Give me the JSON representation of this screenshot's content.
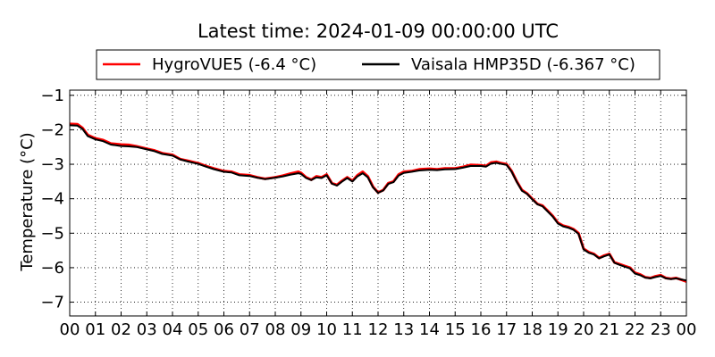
{
  "chart_data": {
    "type": "line",
    "title": "Latest time: 2024-01-09 00:00:00 UTC",
    "xlabel": "",
    "ylabel": "Temperature (°C)",
    "xlim": [
      0,
      24
    ],
    "ylim": [
      -7.4,
      -0.85
    ],
    "grid": true,
    "legend_placement": "top-center",
    "x_ticks": [
      0,
      1,
      2,
      3,
      4,
      5,
      6,
      7,
      8,
      9,
      10,
      11,
      12,
      13,
      14,
      15,
      16,
      17,
      18,
      19,
      20,
      21,
      22,
      23,
      24
    ],
    "x_tick_labels": [
      "00",
      "01",
      "02",
      "03",
      "04",
      "05",
      "06",
      "07",
      "08",
      "09",
      "10",
      "11",
      "12",
      "13",
      "14",
      "15",
      "16",
      "17",
      "18",
      "19",
      "20",
      "21",
      "22",
      "23",
      "00"
    ],
    "y_ticks": [
      -1,
      -2,
      -3,
      -4,
      -5,
      -6,
      -7
    ],
    "y_tick_labels": [
      "−1",
      "−2",
      "−3",
      "−4",
      "−5",
      "−6",
      "−7"
    ],
    "x": [
      0,
      0.3,
      0.5,
      0.7,
      1.0,
      1.3,
      1.6,
      2.0,
      2.3,
      2.6,
      3.0,
      3.3,
      3.6,
      4.0,
      4.3,
      4.6,
      5.0,
      5.3,
      5.6,
      6.0,
      6.3,
      6.6,
      7.0,
      7.3,
      7.6,
      8.0,
      8.3,
      8.6,
      8.9,
      9.0,
      9.2,
      9.4,
      9.6,
      9.8,
      10.0,
      10.2,
      10.4,
      10.6,
      10.8,
      11.0,
      11.2,
      11.4,
      11.6,
      11.8,
      12.0,
      12.2,
      12.4,
      12.6,
      12.8,
      13.0,
      13.3,
      13.6,
      14.0,
      14.3,
      14.6,
      15.0,
      15.3,
      15.6,
      16.0,
      16.2,
      16.4,
      16.6,
      16.8,
      17.0,
      17.2,
      17.4,
      17.6,
      17.8,
      18.0,
      18.2,
      18.4,
      18.6,
      18.8,
      19.0,
      19.2,
      19.4,
      19.6,
      19.8,
      20.0,
      20.2,
      20.4,
      20.6,
      20.8,
      21.0,
      21.2,
      21.4,
      21.6,
      21.8,
      22.0,
      22.2,
      22.4,
      22.6,
      22.8,
      23.0,
      23.2,
      23.4,
      23.6,
      23.8,
      24.0
    ],
    "series": [
      {
        "name": "HygroVUE5 (-6.4 °C)",
        "color": "#ff0000",
        "values": [
          -1.83,
          -1.84,
          -1.95,
          -2.15,
          -2.25,
          -2.3,
          -2.4,
          -2.43,
          -2.44,
          -2.48,
          -2.55,
          -2.6,
          -2.68,
          -2.73,
          -2.85,
          -2.9,
          -2.97,
          -3.05,
          -3.12,
          -3.2,
          -3.22,
          -3.3,
          -3.32,
          -3.38,
          -3.42,
          -3.38,
          -3.33,
          -3.27,
          -3.22,
          -3.25,
          -3.38,
          -3.45,
          -3.35,
          -3.38,
          -3.3,
          -3.55,
          -3.6,
          -3.48,
          -3.38,
          -3.48,
          -3.32,
          -3.22,
          -3.35,
          -3.65,
          -3.82,
          -3.75,
          -3.55,
          -3.5,
          -3.3,
          -3.22,
          -3.2,
          -3.15,
          -3.13,
          -3.15,
          -3.12,
          -3.12,
          -3.08,
          -3.02,
          -3.03,
          -3.05,
          -2.95,
          -2.93,
          -2.97,
          -3.0,
          -3.2,
          -3.5,
          -3.75,
          -3.85,
          -4.0,
          -4.15,
          -4.2,
          -4.35,
          -4.5,
          -4.7,
          -4.78,
          -4.82,
          -4.88,
          -5.0,
          -5.45,
          -5.55,
          -5.6,
          -5.72,
          -5.65,
          -5.6,
          -5.85,
          -5.9,
          -5.95,
          -6.0,
          -6.15,
          -6.2,
          -6.28,
          -6.3,
          -6.25,
          -6.22,
          -6.3,
          -6.32,
          -6.3,
          -6.35,
          -6.4
        ]
      },
      {
        "name": "Vaisala HMP35D (-6.367 °C)",
        "color": "#000000",
        "values": [
          -1.87,
          -1.88,
          -1.98,
          -2.18,
          -2.28,
          -2.33,
          -2.43,
          -2.47,
          -2.48,
          -2.5,
          -2.57,
          -2.62,
          -2.7,
          -2.75,
          -2.86,
          -2.92,
          -2.99,
          -3.07,
          -3.14,
          -3.22,
          -3.24,
          -3.32,
          -3.34,
          -3.39,
          -3.43,
          -3.39,
          -3.35,
          -3.3,
          -3.26,
          -3.28,
          -3.4,
          -3.46,
          -3.38,
          -3.4,
          -3.32,
          -3.56,
          -3.62,
          -3.5,
          -3.4,
          -3.5,
          -3.35,
          -3.26,
          -3.38,
          -3.67,
          -3.83,
          -3.76,
          -3.57,
          -3.52,
          -3.33,
          -3.25,
          -3.22,
          -3.18,
          -3.16,
          -3.17,
          -3.15,
          -3.14,
          -3.1,
          -3.05,
          -3.05,
          -3.07,
          -2.98,
          -2.96,
          -2.99,
          -3.02,
          -3.22,
          -3.52,
          -3.77,
          -3.86,
          -4.02,
          -4.16,
          -4.22,
          -4.37,
          -4.52,
          -4.72,
          -4.8,
          -4.84,
          -4.9,
          -5.02,
          -5.47,
          -5.57,
          -5.62,
          -5.73,
          -5.67,
          -5.62,
          -5.86,
          -5.92,
          -5.97,
          -6.02,
          -6.17,
          -6.22,
          -6.29,
          -6.31,
          -6.27,
          -6.24,
          -6.31,
          -6.33,
          -6.31,
          -6.34,
          -6.37
        ]
      }
    ]
  }
}
